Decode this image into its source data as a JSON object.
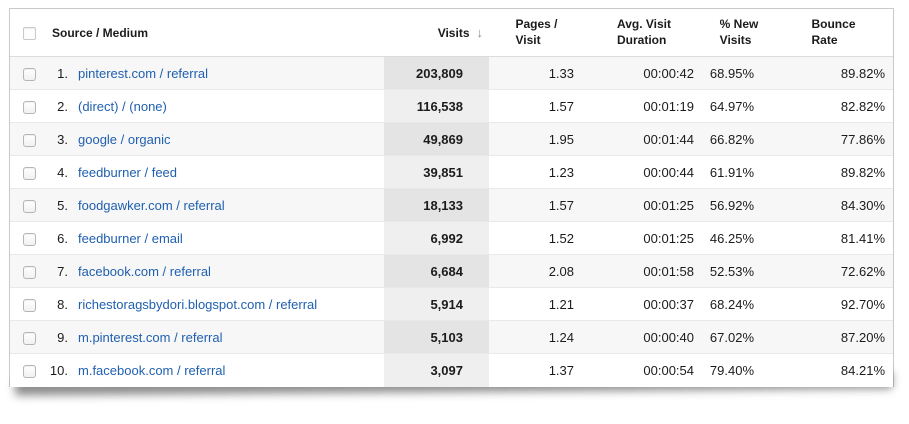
{
  "colors": {
    "link_blue": "#2060b0",
    "visits_column_odd": "#e4e4e4",
    "visits_column_even": "#efefef",
    "row_stripe_odd": "#f7f7f7",
    "row_stripe_even": "#ffffff"
  },
  "table": {
    "header": {
      "source": "Source / Medium",
      "visits": "Visits",
      "sort_icon": "↓",
      "pages": "Pages /\nVisit",
      "duration": "Avg. Visit\nDuration",
      "new_visits": "% New\nVisits",
      "bounce": "Bounce\nRate"
    },
    "rows": [
      {
        "index": "1.",
        "source": "pinterest.com / referral",
        "visits": "203,809",
        "pages": "1.33",
        "duration": "00:00:42",
        "new_visits": "68.95%",
        "bounce": "89.82%"
      },
      {
        "index": "2.",
        "source": "(direct) / (none)",
        "visits": "116,538",
        "pages": "1.57",
        "duration": "00:01:19",
        "new_visits": "64.97%",
        "bounce": "82.82%"
      },
      {
        "index": "3.",
        "source": "google / organic",
        "visits": "49,869",
        "pages": "1.95",
        "duration": "00:01:44",
        "new_visits": "66.82%",
        "bounce": "77.86%"
      },
      {
        "index": "4.",
        "source": "feedburner / feed",
        "visits": "39,851",
        "pages": "1.23",
        "duration": "00:00:44",
        "new_visits": "61.91%",
        "bounce": "89.82%"
      },
      {
        "index": "5.",
        "source": "foodgawker.com / referral",
        "visits": "18,133",
        "pages": "1.57",
        "duration": "00:01:25",
        "new_visits": "56.92%",
        "bounce": "84.30%"
      },
      {
        "index": "6.",
        "source": "feedburner / email",
        "visits": "6,992",
        "pages": "1.52",
        "duration": "00:01:25",
        "new_visits": "46.25%",
        "bounce": "81.41%"
      },
      {
        "index": "7.",
        "source": "facebook.com / referral",
        "visits": "6,684",
        "pages": "2.08",
        "duration": "00:01:58",
        "new_visits": "52.53%",
        "bounce": "72.62%"
      },
      {
        "index": "8.",
        "source": "richestoragsbydori.blogspot.com / referral",
        "visits": "5,914",
        "pages": "1.21",
        "duration": "00:00:37",
        "new_visits": "68.24%",
        "bounce": "92.70%"
      },
      {
        "index": "9.",
        "source": "m.pinterest.com / referral",
        "visits": "5,103",
        "pages": "1.24",
        "duration": "00:00:40",
        "new_visits": "67.02%",
        "bounce": "87.20%"
      },
      {
        "index": "10.",
        "source": "m.facebook.com / referral",
        "visits": "3,097",
        "pages": "1.37",
        "duration": "00:00:54",
        "new_visits": "79.40%",
        "bounce": "84.21%"
      }
    ]
  }
}
